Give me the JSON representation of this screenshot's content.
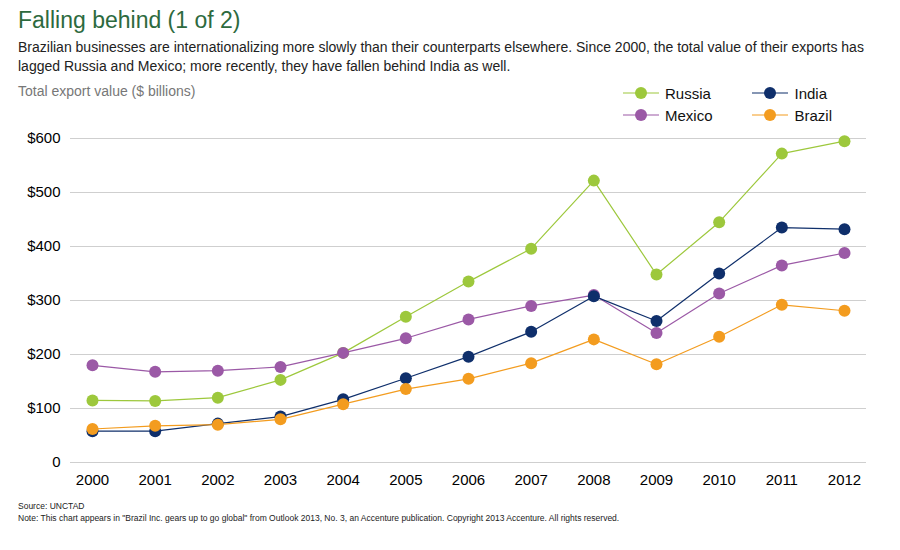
{
  "chart_data": {
    "type": "line",
    "title": "Falling behind (1 of 2)",
    "subtitle": "Brazilian businesses are internationalizing more slowly than their counterparts elsewhere. Since 2000, the total value of their exports has lagged Russia and Mexico; more recently, they have fallen behind India as well.",
    "y_label": "Total export value ($ billions)",
    "source": "Source: UNCTAD",
    "note": "Note: This chart appears in \"Brazil Inc. gears up to go global\" from Outlook 2013, No. 3, an Accenture publication. Copyright 2013 Accenture. All rights reserved.",
    "x": [
      2000,
      2001,
      2002,
      2003,
      2004,
      2005,
      2006,
      2007,
      2008,
      2009,
      2010,
      2011,
      2012
    ],
    "xlim": [
      2000,
      2012
    ],
    "xticks": [
      2000,
      2001,
      2002,
      2003,
      2004,
      2005,
      2006,
      2007,
      2008,
      2009,
      2010,
      2011,
      2012
    ],
    "ylim": [
      0,
      600
    ],
    "yticks": [
      0,
      {
        "value": 100,
        "label": "$100"
      },
      {
        "value": 200,
        "label": "$200"
      },
      {
        "value": 300,
        "label": "$300"
      },
      {
        "value": 400,
        "label": "$400"
      },
      {
        "value": 500,
        "label": "$500"
      },
      {
        "value": 600,
        "label": "$600"
      }
    ],
    "grid": true,
    "legend": "top-right",
    "series": [
      {
        "name": "Russia",
        "color": "#9dc83c",
        "marker": "circle",
        "line_style": "solid",
        "values": [
          115,
          114,
          120,
          153,
          203,
          270,
          335,
          396,
          522,
          348,
          445,
          572,
          595
        ]
      },
      {
        "name": "Mexico",
        "color": "#9b59a6",
        "marker": "circle",
        "line_style": "solid",
        "values": [
          180,
          168,
          170,
          177,
          203,
          230,
          265,
          290,
          310,
          240,
          313,
          365,
          388
        ]
      },
      {
        "name": "India",
        "color": "#0f2f6b",
        "marker": "circle",
        "line_style": "solid",
        "values": [
          58,
          58,
          72,
          85,
          117,
          156,
          196,
          242,
          308,
          262,
          350,
          435,
          432
        ]
      },
      {
        "name": "Brazil",
        "color": "#f39c1f",
        "marker": "circle",
        "line_style": "solid",
        "values": [
          62,
          68,
          70,
          80,
          108,
          136,
          155,
          184,
          228,
          182,
          233,
          292,
          281
        ]
      }
    ]
  }
}
